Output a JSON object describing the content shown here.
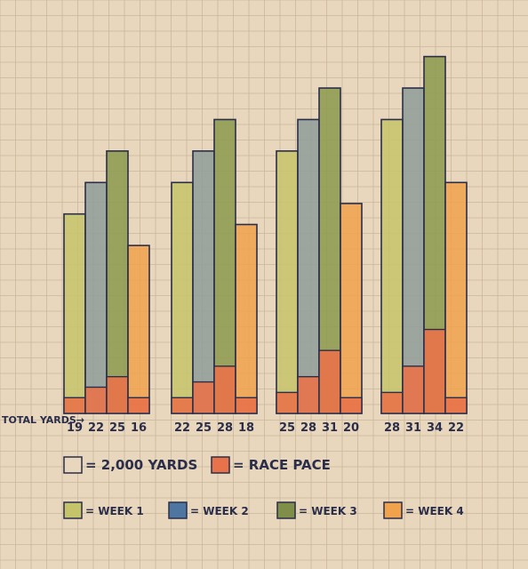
{
  "chart_data": {
    "type": "bar",
    "stacked_overlay": true,
    "row_label": "TOTAL YARDS→",
    "groups": [
      {
        "label": "",
        "bars": [
          {
            "series": "WEEK 1",
            "total": 19,
            "race": 1.5
          },
          {
            "series": "WEEK 2",
            "total": 22,
            "race": 2.5
          },
          {
            "series": "WEEK 3",
            "total": 25,
            "race": 3.5
          },
          {
            "series": "WEEK 4",
            "total": 16,
            "race": 1.5
          }
        ]
      },
      {
        "label": "",
        "bars": [
          {
            "series": "WEEK 1",
            "total": 22,
            "race": 1.5
          },
          {
            "series": "WEEK 2",
            "total": 25,
            "race": 3
          },
          {
            "series": "WEEK 3",
            "total": 28,
            "race": 4.5
          },
          {
            "series": "WEEK 4",
            "total": 18,
            "race": 1.5
          }
        ]
      },
      {
        "label": "",
        "bars": [
          {
            "series": "WEEK 1",
            "total": 25,
            "race": 2
          },
          {
            "series": "WEEK 2",
            "total": 28,
            "race": 3.5
          },
          {
            "series": "WEEK 3",
            "total": 31,
            "race": 6
          },
          {
            "series": "WEEK 4",
            "total": 20,
            "race": 1.5
          }
        ]
      },
      {
        "label": "",
        "bars": [
          {
            "series": "WEEK 1",
            "total": 28,
            "race": 2
          },
          {
            "series": "WEEK 2",
            "total": 31,
            "race": 4.5
          },
          {
            "series": "WEEK 3",
            "total": 34,
            "race": 8
          },
          {
            "series": "WEEK 4",
            "total": 22,
            "race": 1.5
          }
        ]
      }
    ],
    "unit_note": "= 2,000 YARDS",
    "race_note": "= RACE PACE",
    "series_colors": {
      "WEEK 1": "#c6c46a",
      "WEEK 2": "#8f9c9a",
      "WEEK 3": "#8c9a4e",
      "WEEK 4": "#f0a24c"
    },
    "race_color": "#e8734a",
    "ylim": [
      0,
      36
    ],
    "grid": true
  },
  "legend": {
    "row1": [
      {
        "label": "= 2,000 YARDS",
        "color": "#e9d7bd"
      },
      {
        "label": "= RACE PACE",
        "color": "#e8734a"
      }
    ],
    "row2": [
      {
        "label": "= WEEK 1",
        "color": "#c6c46a"
      },
      {
        "label": "= WEEK 2",
        "color": "#4f76a0"
      },
      {
        "label": "= WEEK 3",
        "color": "#7f8f48"
      },
      {
        "label": "= WEEK 4",
        "color": "#f0a24c"
      }
    ]
  },
  "paper_color": "#e9d7bd",
  "grid_color": "#c9b79c",
  "ink_color": "#2a2e4a"
}
